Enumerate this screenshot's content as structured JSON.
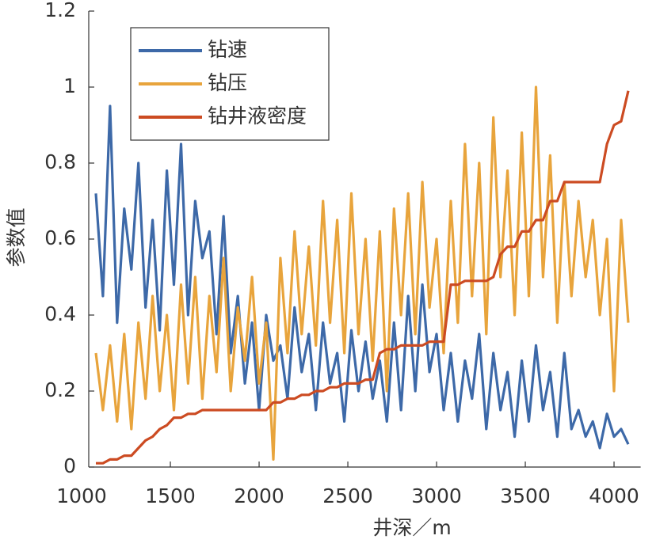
{
  "chart_data": {
    "type": "line",
    "xlabel": "井深／m",
    "ylabel": "参数值",
    "x": [
      1080,
      1120,
      1160,
      1200,
      1240,
      1280,
      1320,
      1360,
      1400,
      1440,
      1480,
      1520,
      1560,
      1600,
      1640,
      1680,
      1720,
      1760,
      1800,
      1840,
      1880,
      1920,
      1960,
      2000,
      2040,
      2080,
      2120,
      2160,
      2200,
      2240,
      2280,
      2320,
      2360,
      2400,
      2440,
      2480,
      2520,
      2560,
      2600,
      2640,
      2680,
      2720,
      2760,
      2800,
      2840,
      2880,
      2920,
      2960,
      3000,
      3040,
      3080,
      3120,
      3160,
      3200,
      3240,
      3280,
      3320,
      3360,
      3400,
      3440,
      3480,
      3520,
      3560,
      3600,
      3640,
      3680,
      3720,
      3760,
      3800,
      3840,
      3880,
      3920,
      3960,
      4000,
      4040,
      4080
    ],
    "series": [
      {
        "name": "钻速",
        "color": "#3d69a8",
        "values": [
          0.72,
          0.45,
          0.95,
          0.38,
          0.68,
          0.52,
          0.8,
          0.42,
          0.65,
          0.36,
          0.78,
          0.48,
          0.85,
          0.4,
          0.7,
          0.55,
          0.62,
          0.35,
          0.66,
          0.3,
          0.45,
          0.22,
          0.38,
          0.15,
          0.4,
          0.28,
          0.32,
          0.18,
          0.42,
          0.25,
          0.35,
          0.15,
          0.38,
          0.22,
          0.3,
          0.12,
          0.36,
          0.2,
          0.33,
          0.18,
          0.28,
          0.12,
          0.38,
          0.15,
          0.45,
          0.2,
          0.48,
          0.25,
          0.35,
          0.15,
          0.3,
          0.12,
          0.28,
          0.18,
          0.35,
          0.1,
          0.3,
          0.15,
          0.25,
          0.08,
          0.28,
          0.12,
          0.32,
          0.15,
          0.25,
          0.08,
          0.3,
          0.1,
          0.15,
          0.08,
          0.12,
          0.05,
          0.14,
          0.08,
          0.1,
          0.06
        ]
      },
      {
        "name": "钻压",
        "color": "#e8a43c",
        "values": [
          0.3,
          0.15,
          0.32,
          0.12,
          0.35,
          0.1,
          0.38,
          0.18,
          0.45,
          0.2,
          0.4,
          0.15,
          0.48,
          0.22,
          0.5,
          0.18,
          0.45,
          0.25,
          0.55,
          0.2,
          0.42,
          0.28,
          0.5,
          0.22,
          0.38,
          0.02,
          0.55,
          0.3,
          0.62,
          0.35,
          0.58,
          0.32,
          0.7,
          0.38,
          0.65,
          0.3,
          0.72,
          0.35,
          0.6,
          0.28,
          0.62,
          0.2,
          0.68,
          0.4,
          0.72,
          0.35,
          0.75,
          0.42,
          0.6,
          0.3,
          0.7,
          0.38,
          0.85,
          0.45,
          0.8,
          0.35,
          0.92,
          0.5,
          0.78,
          0.4,
          0.88,
          0.45,
          1.0,
          0.5,
          0.82,
          0.38,
          0.75,
          0.45,
          0.7,
          0.5,
          0.65,
          0.4,
          0.6,
          0.2,
          0.65,
          0.38
        ]
      },
      {
        "name": "钻井液密度",
        "color": "#cc4b22",
        "values": [
          0.01,
          0.01,
          0.02,
          0.02,
          0.03,
          0.03,
          0.05,
          0.07,
          0.08,
          0.1,
          0.11,
          0.13,
          0.13,
          0.14,
          0.14,
          0.15,
          0.15,
          0.15,
          0.15,
          0.15,
          0.15,
          0.15,
          0.15,
          0.15,
          0.15,
          0.17,
          0.17,
          0.18,
          0.18,
          0.19,
          0.19,
          0.2,
          0.2,
          0.21,
          0.21,
          0.22,
          0.22,
          0.22,
          0.23,
          0.23,
          0.3,
          0.31,
          0.31,
          0.32,
          0.32,
          0.32,
          0.32,
          0.33,
          0.33,
          0.33,
          0.48,
          0.48,
          0.49,
          0.49,
          0.49,
          0.49,
          0.5,
          0.56,
          0.58,
          0.58,
          0.62,
          0.62,
          0.65,
          0.65,
          0.7,
          0.7,
          0.75,
          0.75,
          0.75,
          0.75,
          0.75,
          0.75,
          0.85,
          0.9,
          0.91,
          0.99
        ]
      }
    ],
    "xlim": [
      1040,
      4150
    ],
    "xticks": [
      1000,
      1500,
      2000,
      2500,
      3000,
      3500,
      4000
    ],
    "ylim": [
      0,
      1.2
    ],
    "yticks": [
      0,
      0.2,
      0.4,
      0.6,
      0.8,
      1,
      1.2
    ],
    "legend": "upper left"
  }
}
